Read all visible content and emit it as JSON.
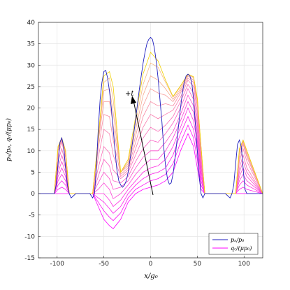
{
  "chart_data": {
    "type": "line",
    "xlabel": "x/g₀",
    "ylabel": "pₙ/p₀, qᵣ/(μp₀)",
    "xlim": [
      -120,
      120
    ],
    "ylim": [
      -15,
      40
    ],
    "x_ticks": [
      "-100",
      "-50",
      "0",
      "50",
      "100"
    ],
    "y_ticks": [
      "-15",
      "-10",
      "-5",
      "0",
      "5",
      "10",
      "15",
      "20",
      "25",
      "30",
      "35",
      "40"
    ],
    "grid": true,
    "legend_position": "bottom-right",
    "annotation": "+t",
    "colors": {
      "pn": "#1f1fbf",
      "qr_start": "#ff00ff",
      "qr_end": "#f5c87a",
      "qr_last": "#f0d000"
    },
    "series": [
      {
        "name": "pₙ/p₀",
        "color": "#1f1fbf",
        "x": [
          -120,
          -110,
          -103,
          -101,
          -99,
          -97,
          -95,
          -93,
          -91,
          -89,
          -87,
          -85,
          -80,
          -75,
          -70,
          -65,
          -62,
          -60,
          -58,
          -56,
          -54,
          -52,
          -50,
          -48,
          -46,
          -44,
          -42,
          -40,
          -38,
          -36,
          -34,
          -32,
          -30,
          -28,
          -26,
          -24,
          -22,
          -20,
          -18,
          -16,
          -14,
          -12,
          -10,
          -8,
          -6,
          -4,
          -2,
          0,
          2,
          4,
          6,
          8,
          10,
          12,
          14,
          16,
          18,
          20,
          22,
          24,
          26,
          28,
          30,
          32,
          34,
          36,
          38,
          40,
          42,
          44,
          46,
          48,
          50,
          52,
          54,
          56,
          58,
          60,
          62,
          65,
          70,
          75,
          80,
          85,
          87,
          89,
          91,
          93,
          95,
          97,
          99,
          101,
          103,
          110,
          120
        ],
        "values": [
          0,
          0,
          0,
          2,
          7,
          12,
          13,
          11,
          6,
          2,
          0,
          -1,
          0,
          0,
          0,
          0,
          -1,
          0,
          6,
          15,
          22,
          26,
          28.5,
          28.8,
          27,
          24,
          20,
          15,
          10,
          5.5,
          3,
          2,
          1.5,
          2,
          3,
          5,
          8,
          11,
          14,
          17.5,
          21,
          24.5,
          27.5,
          30.5,
          33,
          35,
          36,
          36.5,
          36,
          34,
          31,
          27,
          22,
          17,
          11,
          6.5,
          3.5,
          2.2,
          2.5,
          4.5,
          8,
          12,
          16,
          20,
          23.5,
          26,
          27.5,
          27.9,
          27.5,
          26,
          22,
          16,
          10,
          4,
          0,
          -1,
          0,
          0,
          0,
          0,
          0,
          0,
          0,
          -1,
          0,
          2,
          7,
          11.5,
          12.5,
          11,
          6,
          1,
          0,
          0,
          0
        ]
      },
      {
        "name": "qᵣ/(μp₀)",
        "note": "family of curves evolving with t (arrow labelled +t); listed from the most negative to the highest",
        "x": [
          -120,
          -103,
          -99,
          -95,
          -91,
          -87,
          -62,
          -56,
          -50,
          -44,
          -40,
          -32,
          -24,
          -16,
          -8,
          0,
          8,
          16,
          24,
          32,
          40,
          46,
          50,
          54,
          58,
          62,
          87,
          91,
          95,
          99,
          103,
          120
        ],
        "curves": [
          [
            0,
            0,
            0,
            0,
            0,
            0,
            0,
            -3,
            -6,
            -7.5,
            -8.2,
            -6,
            -2,
            0,
            1,
            1.5,
            2,
            3,
            5,
            10,
            14,
            11,
            6,
            1,
            0,
            0,
            0,
            0,
            0,
            0,
            0,
            0
          ],
          [
            0,
            0,
            1,
            1.5,
            1,
            0,
            0,
            -2,
            -4,
            -5.5,
            -6.3,
            -4.5,
            -1,
            1,
            2,
            3,
            3.5,
            4.5,
            7,
            12,
            16,
            13,
            8,
            2,
            0,
            0,
            0,
            0,
            0,
            0,
            0,
            0
          ],
          [
            0,
            0,
            2,
            3,
            2,
            0,
            0,
            -1,
            -2,
            -3.5,
            -4.6,
            -3,
            0,
            2,
            3.5,
            4.5,
            5,
            6,
            9,
            14,
            18,
            15,
            10,
            3,
            0,
            0,
            0,
            0,
            1,
            1.5,
            1,
            0
          ],
          [
            0,
            0,
            3,
            4.5,
            3,
            0,
            0,
            0,
            0,
            -1.5,
            -3,
            -1.5,
            1,
            3,
            5,
            6,
            6.5,
            8,
            11,
            15.5,
            20,
            17,
            12,
            4,
            0,
            0,
            0,
            0,
            2,
            3,
            2,
            0
          ],
          [
            0,
            0,
            4,
            6,
            4,
            0,
            0,
            1,
            2.5,
            1,
            -1.2,
            0,
            2,
            4.5,
            6.5,
            8,
            8,
            10,
            13,
            17,
            21.5,
            19,
            13,
            5,
            0,
            0,
            0,
            0,
            3,
            4.5,
            3,
            0
          ],
          [
            0,
            0,
            5,
            7.5,
            5,
            0,
            0,
            2.5,
            5,
            3.5,
            1,
            1.5,
            3,
            6,
            8.5,
            10,
            10,
            12,
            14.5,
            18.5,
            23,
            20.5,
            14.5,
            6,
            0,
            0,
            0,
            0,
            4,
            6,
            4,
            0
          ],
          [
            0,
            0,
            6,
            9,
            6,
            0,
            0,
            4,
            8,
            6.5,
            3,
            2.5,
            4,
            7.5,
            10.5,
            12.5,
            12,
            14,
            16.5,
            20,
            24.5,
            22,
            16,
            7,
            0,
            0,
            0,
            0,
            5,
            7.5,
            5,
            0
          ],
          [
            0,
            0,
            7.5,
            10.5,
            7,
            0,
            0,
            6,
            11,
            9.5,
            5.5,
            3.5,
            5,
            9,
            13,
            15.5,
            14.5,
            16,
            18,
            21.5,
            25.5,
            23.5,
            17.5,
            8,
            0,
            0,
            0,
            0,
            6,
            9,
            6,
            0
          ],
          [
            0,
            0,
            9,
            12,
            8.5,
            0,
            0,
            8.5,
            15,
            14,
            9,
            4,
            5.5,
            10.5,
            15.5,
            18.5,
            17.5,
            18.5,
            19.5,
            22.5,
            26.5,
            25,
            19,
            9,
            0,
            0,
            0,
            0,
            7.5,
            10.5,
            7.5,
            0
          ],
          [
            0,
            0,
            10,
            12.5,
            9,
            0,
            0,
            10.5,
            18.5,
            18,
            12.5,
            4.5,
            6,
            12,
            18,
            21.5,
            20.5,
            21,
            20.5,
            23.5,
            27,
            26,
            20.5,
            10,
            0,
            0,
            0,
            0,
            8.5,
            11.5,
            8.5,
            0
          ],
          [
            0,
            0,
            10.5,
            12.8,
            9.5,
            0,
            0,
            12,
            21.5,
            21.5,
            16,
            5,
            6.5,
            13.5,
            20.5,
            24.5,
            23.5,
            23,
            21.5,
            24,
            27.5,
            26.5,
            21.5,
            10.5,
            0,
            0,
            0,
            0,
            9.5,
            12,
            9,
            0
          ],
          [
            0,
            0,
            10.8,
            13,
            10,
            0,
            0,
            12.5,
            24,
            24.5,
            19,
            5,
            7,
            15,
            23,
            27.5,
            26.5,
            24.5,
            22,
            24.5,
            27.8,
            27,
            22,
            10.8,
            0,
            0,
            0,
            0,
            10,
            12.3,
            9.5,
            0
          ],
          [
            0,
            0,
            11,
            13,
            10,
            0,
            0,
            13,
            26,
            27,
            22,
            5,
            7.5,
            16.5,
            25.5,
            30.5,
            29.5,
            26,
            22.5,
            25,
            27.9,
            27.2,
            22.2,
            11,
            0,
            0,
            0,
            0,
            10.5,
            12.5,
            10,
            0
          ],
          [
            0,
            0,
            11,
            13,
            10,
            0,
            0,
            13,
            27.5,
            28.5,
            25,
            5,
            8,
            18,
            28,
            33,
            31,
            26.5,
            22.7,
            25.2,
            27.9,
            27.3,
            22.3,
            11,
            0,
            0,
            0,
            0,
            10.5,
            12.5,
            10,
            0
          ]
        ]
      }
    ]
  }
}
